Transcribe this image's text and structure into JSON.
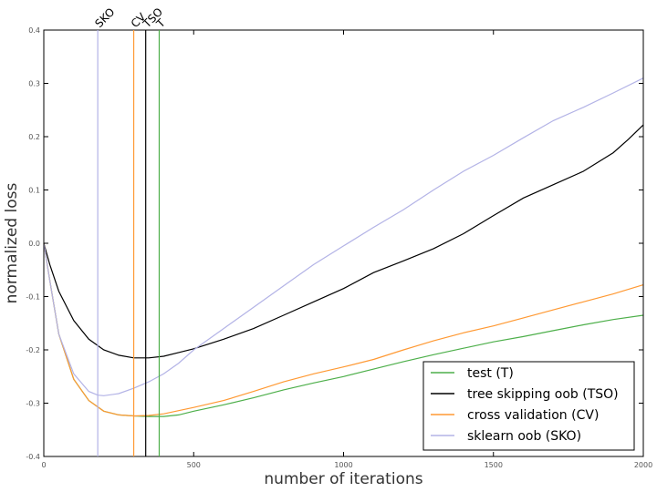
{
  "chart_data": {
    "type": "line",
    "xlabel": "number of iterations",
    "ylabel": "normalized loss",
    "xlim": [
      0,
      2000
    ],
    "ylim": [
      -0.4,
      0.4
    ],
    "x_ticks": [
      "0",
      "500",
      "1000",
      "1500",
      "2000"
    ],
    "y_ticks": [
      "-0.4",
      "-0.3",
      "-0.2",
      "-0.1",
      "0.0",
      "0.1",
      "0.2",
      "0.3",
      "0.4"
    ],
    "grid": false,
    "legend_position": "lower-right",
    "series": [
      {
        "name": "test (T)",
        "color": "#4daf4a",
        "x": [
          0,
          20,
          50,
          100,
          150,
          200,
          250,
          300,
          350,
          380,
          400,
          450,
          500,
          600,
          700,
          800,
          900,
          1000,
          1100,
          1200,
          1300,
          1400,
          1500,
          1600,
          1700,
          1800,
          1900,
          2000
        ],
        "y": [
          0.0,
          -0.07,
          -0.17,
          -0.255,
          -0.295,
          -0.315,
          -0.322,
          -0.324,
          -0.325,
          -0.325,
          -0.325,
          -0.322,
          -0.315,
          -0.303,
          -0.29,
          -0.275,
          -0.262,
          -0.25,
          -0.236,
          -0.222,
          -0.209,
          -0.197,
          -0.185,
          -0.175,
          -0.164,
          -0.153,
          -0.143,
          -0.135
        ]
      },
      {
        "name": "tree skipping oob (TSO)",
        "color": "#000000",
        "x": [
          0,
          20,
          50,
          100,
          150,
          200,
          250,
          300,
          350,
          400,
          450,
          500,
          600,
          700,
          800,
          900,
          1000,
          1100,
          1200,
          1300,
          1400,
          1500,
          1600,
          1700,
          1800,
          1900,
          1950,
          2000
        ],
        "y": [
          0.0,
          -0.04,
          -0.09,
          -0.145,
          -0.18,
          -0.2,
          -0.21,
          -0.215,
          -0.215,
          -0.212,
          -0.205,
          -0.198,
          -0.18,
          -0.16,
          -0.135,
          -0.11,
          -0.085,
          -0.055,
          -0.033,
          -0.01,
          0.018,
          0.052,
          0.085,
          0.11,
          0.135,
          0.17,
          0.195,
          0.222
        ]
      },
      {
        "name": "cross validation (CV)",
        "color": "#ff9933",
        "x": [
          0,
          20,
          50,
          100,
          150,
          200,
          250,
          300,
          350,
          400,
          450,
          500,
          600,
          700,
          800,
          900,
          1000,
          1100,
          1200,
          1300,
          1400,
          1500,
          1600,
          1700,
          1800,
          1900,
          2000
        ],
        "y": [
          0.0,
          -0.07,
          -0.17,
          -0.255,
          -0.295,
          -0.315,
          -0.322,
          -0.324,
          -0.323,
          -0.32,
          -0.314,
          -0.308,
          -0.295,
          -0.278,
          -0.26,
          -0.245,
          -0.232,
          -0.218,
          -0.2,
          -0.183,
          -0.168,
          -0.155,
          -0.14,
          -0.125,
          -0.11,
          -0.095,
          -0.078
        ]
      },
      {
        "name": "sklearn oob (SKO)",
        "color": "#b3b3e6",
        "x": [
          0,
          20,
          50,
          100,
          150,
          180,
          200,
          250,
          300,
          350,
          400,
          450,
          500,
          600,
          700,
          800,
          900,
          1000,
          1100,
          1200,
          1300,
          1400,
          1500,
          1600,
          1700,
          1800,
          1900,
          2000
        ],
        "y": [
          0.0,
          -0.07,
          -0.17,
          -0.245,
          -0.278,
          -0.285,
          -0.286,
          -0.282,
          -0.272,
          -0.26,
          -0.245,
          -0.225,
          -0.2,
          -0.16,
          -0.12,
          -0.08,
          -0.04,
          -0.005,
          0.03,
          0.063,
          0.1,
          0.135,
          0.165,
          0.198,
          0.23,
          0.255,
          0.282,
          0.31
        ]
      }
    ],
    "vertical_lines": [
      {
        "label": "SKO",
        "x": 180,
        "color": "#b3b3e6"
      },
      {
        "label": "CV",
        "x": 300,
        "color": "#ff9933"
      },
      {
        "label": "TSO",
        "x": 340,
        "color": "#000000"
      },
      {
        "label": "T",
        "x": 385,
        "color": "#4daf4a"
      }
    ]
  }
}
